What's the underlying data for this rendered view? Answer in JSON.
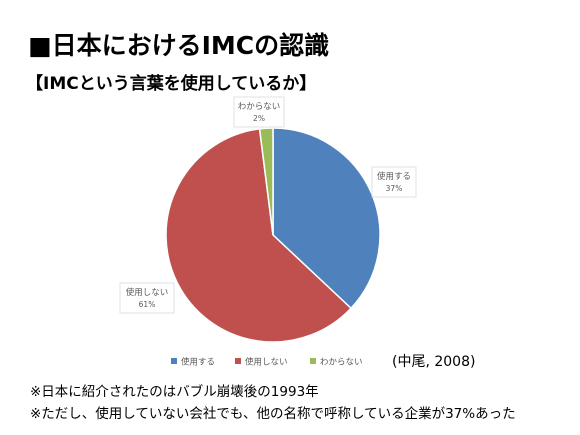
{
  "slide": {
    "title": "■日本におけるIMCの認識",
    "subtitle": "【IMCという言葉を使用しているか】",
    "citation": "(中尾, 2008)",
    "notes": [
      "※日本に紹介されたのはバブル崩壊後の1993年",
      "※ただし、使用していない会社でも、他の名称で呼称している企業が37%あった"
    ]
  },
  "chart_data": {
    "type": "pie",
    "title": "",
    "categories": [
      "使用する",
      "使用しない",
      "わからない"
    ],
    "values": [
      37,
      61,
      2
    ],
    "value_labels": [
      "37%",
      "61%",
      "2%"
    ],
    "colors": [
      "#4f81bd",
      "#c0504d",
      "#9bbb59"
    ],
    "legend_position": "bottom",
    "start_angle": "12 o'clock, clockwise"
  }
}
